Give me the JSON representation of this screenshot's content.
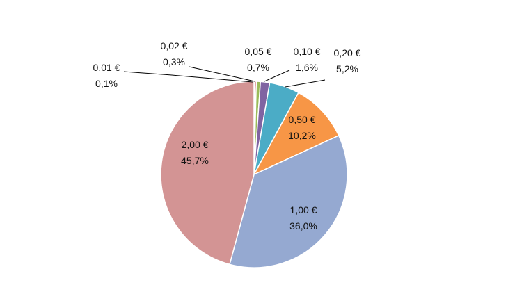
{
  "chart_data": {
    "type": "pie",
    "categories": [
      "0,01 €",
      "0,02 €",
      "0,05 €",
      "0,10 €",
      "0,20 €",
      "0,50 €",
      "1,00 €",
      "2,00 €"
    ],
    "values": [
      0.1,
      0.3,
      0.7,
      1.6,
      5.2,
      10.2,
      36.0,
      45.7
    ],
    "value_labels": [
      "0,1%",
      "0,3%",
      "0,7%",
      "1,6%",
      "5,2%",
      "10,2%",
      "36,0%",
      "45,7%"
    ],
    "colors": [
      "#4F81BD",
      "#C0504D",
      "#9BBB59",
      "#8064A2",
      "#4BACC6",
      "#F79646",
      "#95A9D1",
      "#D39494"
    ],
    "start": "12 o'clock",
    "direction": "clockwise",
    "legend": "none"
  }
}
